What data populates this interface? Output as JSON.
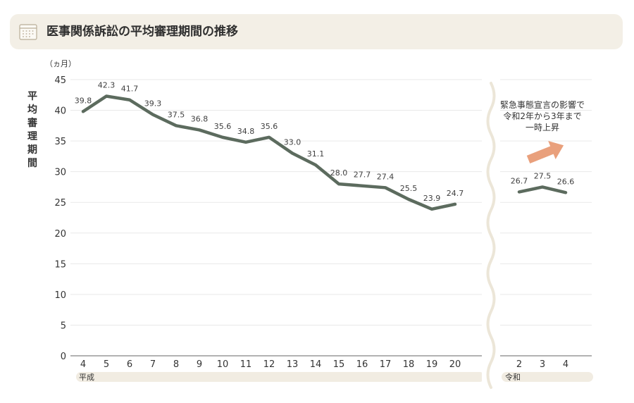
{
  "header": {
    "title": "医事関係訴訟の平均審理期間の推移",
    "icon": "calendar-icon"
  },
  "chart_data": {
    "type": "line",
    "y_unit": "（ヵ月）",
    "ylabel": "平均審理期間",
    "ylim": [
      0,
      45
    ],
    "yticks": [
      0,
      5,
      10,
      15,
      20,
      25,
      30,
      35,
      40,
      45
    ],
    "grid": true,
    "color": "#5c6b5e",
    "segments": [
      {
        "era": "平成",
        "x": [
          "4",
          "5",
          "6",
          "7",
          "8",
          "9",
          "10",
          "11",
          "12",
          "13",
          "14",
          "15",
          "16",
          "17",
          "18",
          "19",
          "20"
        ],
        "values": [
          39.8,
          42.3,
          41.7,
          39.3,
          37.5,
          36.8,
          35.6,
          34.8,
          35.6,
          33.0,
          31.1,
          28.0,
          27.7,
          27.4,
          25.5,
          23.9,
          24.7
        ],
        "labels": [
          "39.8",
          "42.3",
          "41.7",
          "39.3",
          "37.5",
          "36.8",
          "35.6",
          "34.8",
          "35.6",
          "33.0",
          "31.1",
          "28.0",
          "27.7",
          "27.4",
          "25.5",
          "23.9",
          "24.7"
        ]
      },
      {
        "era": "令和",
        "x": [
          "2",
          "3",
          "4"
        ],
        "values": [
          26.7,
          27.5,
          26.6
        ],
        "labels": [
          "26.7",
          "27.5",
          "26.6"
        ]
      }
    ],
    "annotation": {
      "lines": [
        "緊急事態宣言の影響で",
        "令和2年から3年まで",
        "一時上昇"
      ],
      "arrow_color": "#e9a07c"
    }
  }
}
